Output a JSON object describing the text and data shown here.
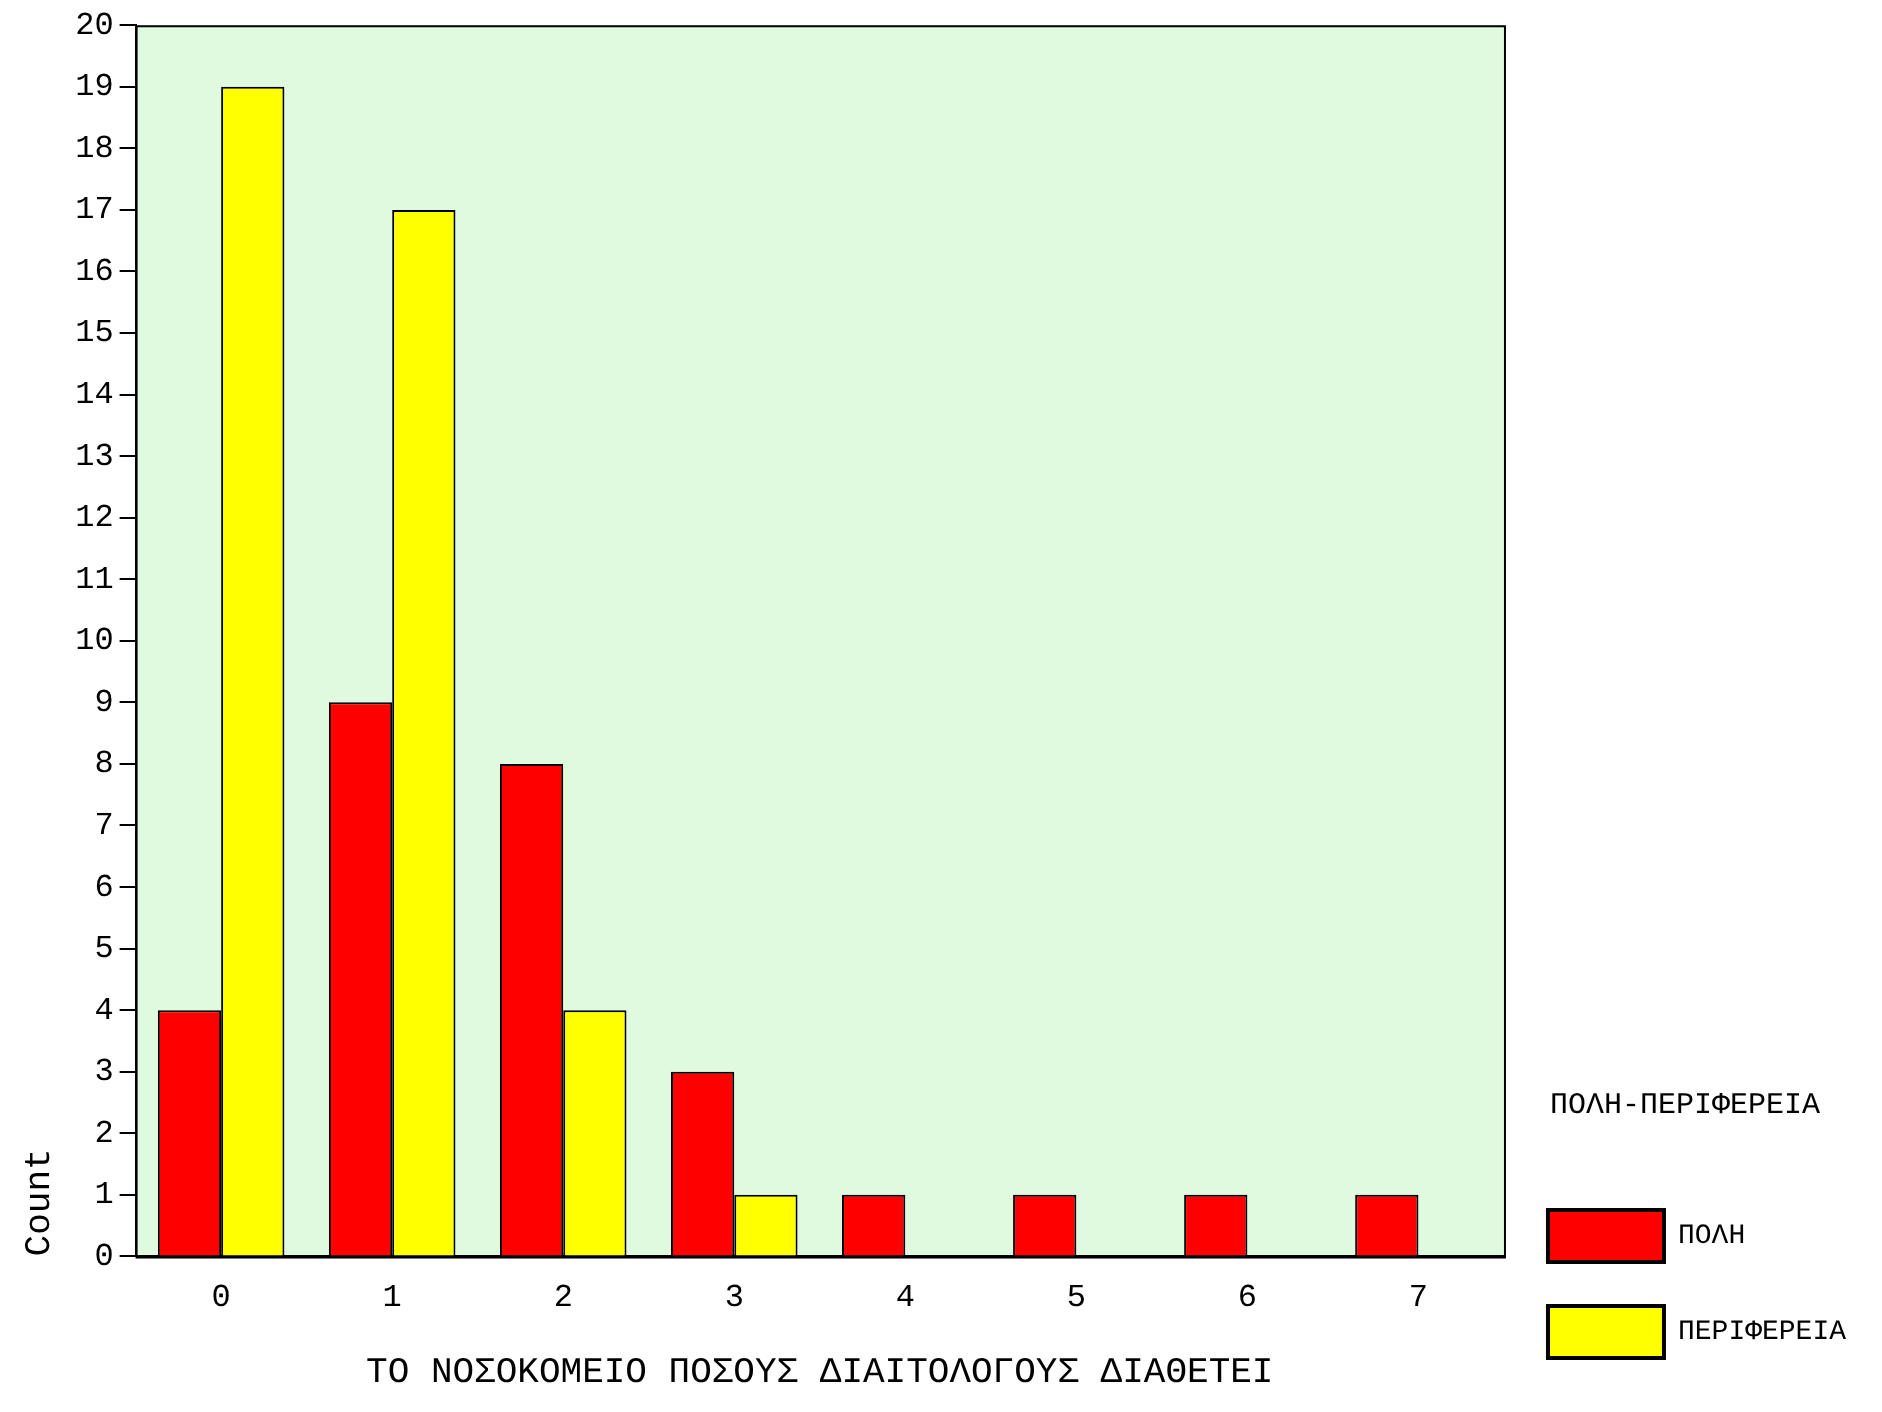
{
  "chart_data": {
    "type": "bar",
    "xlabel": "ΤΟ ΝΟΣΟΚΟΜΕΙΟ ΠΟΣΟΥΣ ΔΙΑΙΤΟΛΟΓΟΥΣ ΔΙΑΘΕΤΕΙ",
    "ylabel": "Count",
    "legend_title": "ΠΟΛΗ-ΠΕΡΙΦΕΡΕΙΑ",
    "categories": [
      "0",
      "1",
      "2",
      "3",
      "4",
      "5",
      "6",
      "7"
    ],
    "series": [
      {
        "name": "ΠΟΛΗ",
        "color": "#ff0000",
        "values": [
          4,
          9,
          8,
          3,
          1,
          1,
          1,
          1
        ]
      },
      {
        "name": "ΠΕΡΙΦΕΡΕΙΑ",
        "color": "#ffff00",
        "values": [
          19,
          17,
          4,
          1,
          0,
          0,
          0,
          0
        ]
      }
    ],
    "ylim": [
      0,
      20
    ],
    "yticks": [
      0,
      1,
      2,
      3,
      4,
      5,
      6,
      7,
      8,
      9,
      10,
      11,
      12,
      13,
      14,
      15,
      16,
      17,
      18,
      19,
      20
    ],
    "grid": false,
    "legend": "right"
  }
}
